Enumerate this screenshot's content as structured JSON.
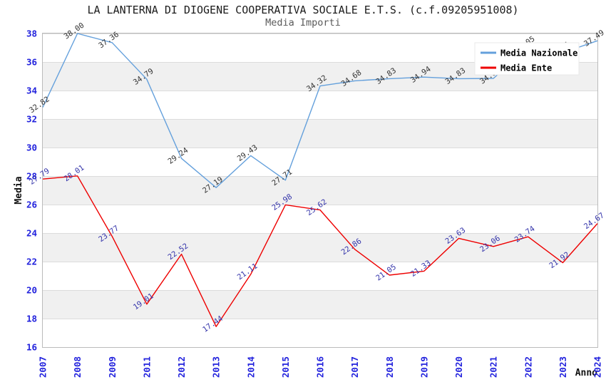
{
  "chart_data": {
    "type": "line",
    "title": "LA LANTERNA DI DIOGENE COOPERATIVA SOCIALE E.T.S. (c.f.09205951008)",
    "subtitle": "Media Importi",
    "xlabel": "Anno",
    "ylabel": "Media",
    "categories": [
      "2007",
      "2008",
      "2009",
      "2011",
      "2012",
      "2013",
      "2014",
      "2015",
      "2016",
      "2017",
      "2018",
      "2019",
      "2020",
      "2021",
      "2022",
      "2023",
      "2024"
    ],
    "ylim": [
      16,
      38
    ],
    "ytick_step": 2,
    "grid": true,
    "alternating_bands": true,
    "legend_position": "top-right",
    "series": [
      {
        "name": "Media Nazionale",
        "color": "#64a0dc",
        "label_color": "#333333",
        "values": [
          32.82,
          38.0,
          37.36,
          34.79,
          29.24,
          27.19,
          29.43,
          27.71,
          34.32,
          34.68,
          34.83,
          34.94,
          34.83,
          34.85,
          37.05,
          36.65,
          37.49
        ],
        "labels": [
          "32.82",
          "38.00",
          "37.36",
          "34.79",
          "29.24",
          "27.19",
          "29.43",
          "27.71",
          "34.32",
          "34.68",
          "34.83",
          "34.94",
          "34.83",
          "34.85",
          "37.05",
          "36.65",
          "37.49"
        ],
        "labels_hidden_by_legend": [
          "2021",
          "2023"
        ],
        "hidden_values_estimated": true
      },
      {
        "name": "Media Ente",
        "color": "#ee0000",
        "label_color": "#3434aa",
        "values": [
          27.79,
          28.01,
          23.77,
          19.01,
          22.52,
          17.44,
          21.11,
          25.98,
          25.62,
          22.86,
          21.05,
          21.33,
          23.63,
          23.06,
          23.74,
          21.92,
          24.67
        ],
        "labels": [
          "27.79",
          "28.01",
          "23.77",
          "19.01",
          "22.52",
          "17.44",
          "21.11",
          "25.98",
          "25.62",
          "22.86",
          "21.05",
          "21.33",
          "23.63",
          "23.06",
          "23.74",
          "21.92",
          "24.67"
        ]
      }
    ],
    "style": {
      "tick_label": "#2222dd",
      "gridline": "#dcdcdc",
      "band": "#f0f0f0",
      "plot_border": "#bbbbbb",
      "legend_bg": "#ffffff",
      "legend_border": "#e8e8e8",
      "legend_text": "#000000",
      "title_color": "#1c1c1c",
      "subtitle_color": "#5a5a5a",
      "axis_label_color": "#111111"
    }
  }
}
